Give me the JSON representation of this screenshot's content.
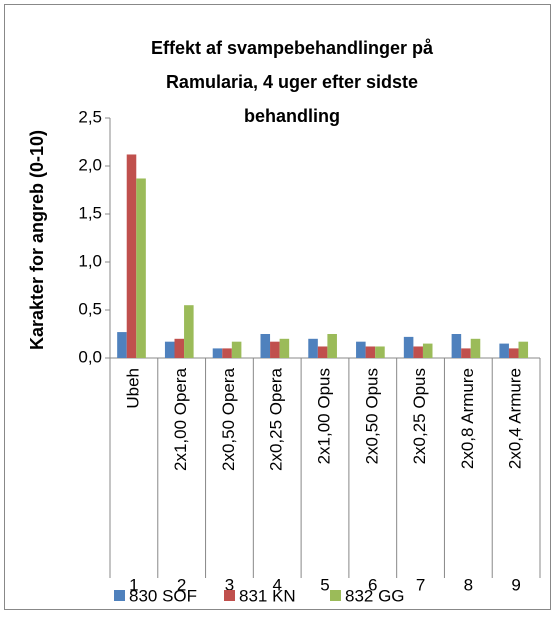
{
  "chart_data": {
    "type": "bar",
    "title": [
      "Effekt af svampebehandlinger på",
      "Ramularia, 4 uger efter sidste",
      "behandling"
    ],
    "ylabel": "Karakter for angreb (0-10)",
    "categories": [
      "1",
      "2",
      "3",
      "4",
      "5",
      "6",
      "7",
      "8",
      "9"
    ],
    "category_labels": [
      "Ubeh",
      "2x1,00 Opera",
      "2x0,50 Opera",
      "2x0,25 Opera",
      "2x1,00 Opus",
      "2x0,50 Opus",
      "2x0,25 Opus",
      "2x0,8 Armure",
      "2x0,4 Armure"
    ],
    "series": [
      {
        "name": "830 SOF",
        "color": "#4f81bd",
        "values": [
          0.27,
          0.17,
          0.1,
          0.25,
          0.2,
          0.17,
          0.22,
          0.25,
          0.15
        ]
      },
      {
        "name": "831 KN",
        "color": "#c0504d",
        "values": [
          2.12,
          0.2,
          0.1,
          0.17,
          0.12,
          0.12,
          0.12,
          0.1,
          0.1
        ]
      },
      {
        "name": "832 GG",
        "color": "#9bbb59",
        "values": [
          1.87,
          0.55,
          0.17,
          0.2,
          0.25,
          0.12,
          0.15,
          0.2,
          0.17
        ]
      }
    ],
    "ylim": [
      0,
      2.5
    ],
    "yticks": [
      {
        "value": 0,
        "label": "0,0"
      },
      {
        "value": 0.5,
        "label": "0,5"
      },
      {
        "value": 1,
        "label": "1,0"
      },
      {
        "value": 1.5,
        "label": "1,5"
      },
      {
        "value": 2,
        "label": "2,0"
      },
      {
        "value": 2.5,
        "label": "2,5"
      }
    ],
    "legend": "bottom"
  }
}
